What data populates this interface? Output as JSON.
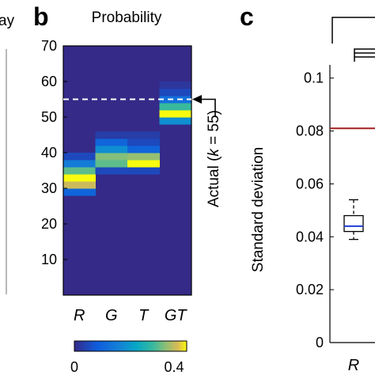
{
  "panels": {
    "left_fragment_text": "ay",
    "b_letter": "b",
    "c_letter": "c"
  },
  "chart_data": [
    {
      "type": "heatmap",
      "title": "Probability",
      "categories": [
        "R",
        "G",
        "T",
        "GT"
      ],
      "y_ticks": [
        "70",
        "60",
        "50",
        "40",
        "30",
        "20",
        "10"
      ],
      "ylim": [
        0,
        70
      ],
      "columns": [
        {
          "name": "R",
          "cells": [
            {
              "k": 29,
              "v": 0.1
            },
            {
              "k": 31,
              "v": 0.36
            },
            {
              "k": 33,
              "v": 0.4
            },
            {
              "k": 35,
              "v": 0.3
            },
            {
              "k": 37,
              "v": 0.15
            },
            {
              "k": 39,
              "v": 0.05
            }
          ]
        },
        {
          "name": "G",
          "cells": [
            {
              "k": 35,
              "v": 0.05
            },
            {
              "k": 37,
              "v": 0.3
            },
            {
              "k": 39,
              "v": 0.32
            },
            {
              "k": 41,
              "v": 0.18
            },
            {
              "k": 43,
              "v": 0.1
            },
            {
              "k": 45,
              "v": 0.03
            }
          ]
        },
        {
          "name": "T",
          "cells": [
            {
              "k": 35,
              "v": 0.05
            },
            {
              "k": 37,
              "v": 0.4
            },
            {
              "k": 39,
              "v": 0.33
            },
            {
              "k": 41,
              "v": 0.1
            },
            {
              "k": 43,
              "v": 0.05
            },
            {
              "k": 45,
              "v": 0.03
            }
          ]
        },
        {
          "name": "GT",
          "cells": [
            {
              "k": 49,
              "v": 0.18
            },
            {
              "k": 51,
              "v": 0.4
            },
            {
              "k": 53,
              "v": 0.28
            },
            {
              "k": 55,
              "v": 0.12
            },
            {
              "k": 57,
              "v": 0.05
            },
            {
              "k": 59,
              "v": 0.02
            }
          ]
        }
      ],
      "actual_k": 55,
      "annotation": "Actual (k = 55)",
      "colorbar": {
        "min_label": "0",
        "max_label": "0.4",
        "range": [
          0,
          0.4
        ]
      }
    },
    {
      "type": "box",
      "ylabel": "Standard deviation",
      "y_ticks": [
        "0.1",
        "0.08",
        "0.06",
        "0.04",
        "0.02",
        "0"
      ],
      "ylim": [
        0,
        0.105
      ],
      "categories": [
        "R"
      ],
      "box": {
        "whisker_low": 0.039,
        "q1": 0.042,
        "median": 0.044,
        "q3": 0.048,
        "whisker_high": 0.054
      },
      "reference_line": {
        "value": 0.081,
        "color": "#a51f1f"
      }
    }
  ]
}
